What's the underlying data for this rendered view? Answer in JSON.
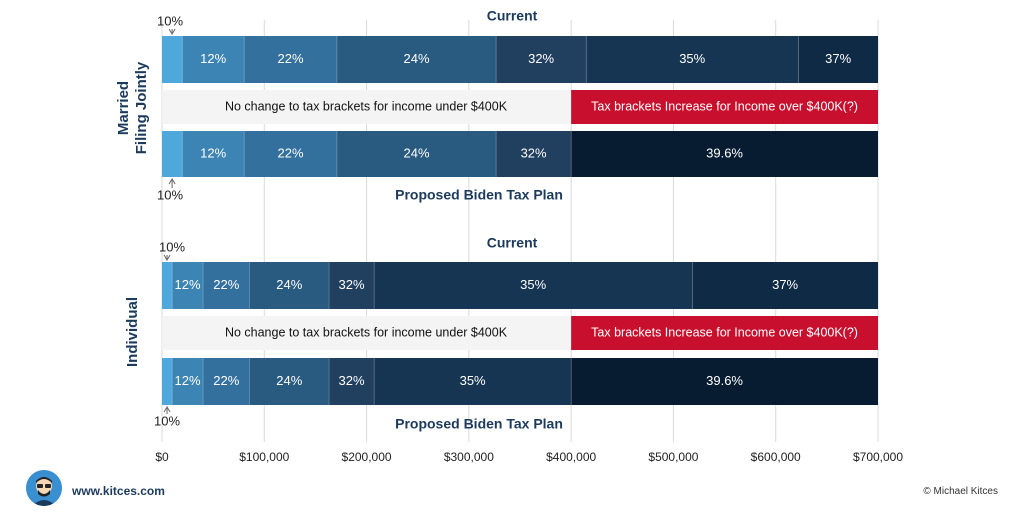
{
  "chart_data": {
    "type": "bar",
    "orientation": "horizontal-stacked",
    "x_axis": {
      "range": [
        0,
        700000
      ],
      "ticks": [
        0,
        100000,
        200000,
        300000,
        400000,
        500000,
        600000,
        700000
      ],
      "tick_labels": [
        "$0",
        "$100,000",
        "$200,000",
        "$300,000",
        "$400,000",
        "$500,000",
        "$600,000",
        "$700,000"
      ],
      "grid": true
    },
    "colors": {
      "10%": "#4ea8dc",
      "12%": "#3b84b4",
      "22%": "#33709e",
      "24%": "#295a80",
      "32%": "#213f5f",
      "35%": "#163553",
      "37%": "#0f2a45",
      "39.6%": "#081c31",
      "note_gray": "#f3f4f3",
      "note_red": "#c8102e",
      "text_dark": "#1b3a5c"
    },
    "panels": [
      {
        "group_label": [
          "Married",
          "Filing Jointly"
        ],
        "current_title": "Current",
        "proposed_title": "Proposed Biden Tax Plan",
        "top_ten_label": "10%",
        "bottom_ten_label": "10%",
        "current": [
          {
            "label": "10%",
            "from": 0,
            "to": 19750
          },
          {
            "label": "12%",
            "from": 19750,
            "to": 80250
          },
          {
            "label": "22%",
            "from": 80250,
            "to": 171050
          },
          {
            "label": "24%",
            "from": 171050,
            "to": 326600
          },
          {
            "label": "32%",
            "from": 326600,
            "to": 414700
          },
          {
            "label": "35%",
            "from": 414700,
            "to": 622050
          },
          {
            "label": "37%",
            "from": 622050,
            "to": 700000
          }
        ],
        "proposed": [
          {
            "label": "10%",
            "from": 0,
            "to": 19750
          },
          {
            "label": "12%",
            "from": 19750,
            "to": 80250
          },
          {
            "label": "22%",
            "from": 80250,
            "to": 171050
          },
          {
            "label": "24%",
            "from": 171050,
            "to": 326600
          },
          {
            "label": "32%",
            "from": 326600,
            "to": 400000
          },
          {
            "label": "39.6%",
            "from": 400000,
            "to": 700000
          }
        ],
        "note_left": "No change to tax brackets for income under $400K",
        "note_right": "Tax brackets Increase for Income over $400K(?)"
      },
      {
        "group_label": [
          "Individual"
        ],
        "current_title": "Current",
        "proposed_title": "Proposed Biden Tax Plan",
        "top_ten_label": "10%",
        "bottom_ten_label": "10%",
        "current": [
          {
            "label": "10%",
            "from": 0,
            "to": 9875
          },
          {
            "label": "12%",
            "from": 9875,
            "to": 40125
          },
          {
            "label": "22%",
            "from": 40125,
            "to": 85525
          },
          {
            "label": "24%",
            "from": 85525,
            "to": 163300
          },
          {
            "label": "32%",
            "from": 163300,
            "to": 207350
          },
          {
            "label": "35%",
            "from": 207350,
            "to": 518400
          },
          {
            "label": "37%",
            "from": 518400,
            "to": 700000
          }
        ],
        "proposed": [
          {
            "label": "10%",
            "from": 0,
            "to": 9875
          },
          {
            "label": "12%",
            "from": 9875,
            "to": 40125
          },
          {
            "label": "22%",
            "from": 40125,
            "to": 85525
          },
          {
            "label": "24%",
            "from": 85525,
            "to": 163300
          },
          {
            "label": "32%",
            "from": 163300,
            "to": 207350
          },
          {
            "label": "35%",
            "from": 207350,
            "to": 400000
          },
          {
            "label": "39.6%",
            "from": 400000,
            "to": 700000
          }
        ],
        "note_left": "No change to tax brackets for income under $400K",
        "note_right": "Tax brackets Increase for Income over $400K(?)"
      }
    ]
  },
  "footer": {
    "url": "www.kitces.com",
    "copyright": "© Michael Kitces",
    "logo_icon": "cartoon-avatar-icon"
  }
}
